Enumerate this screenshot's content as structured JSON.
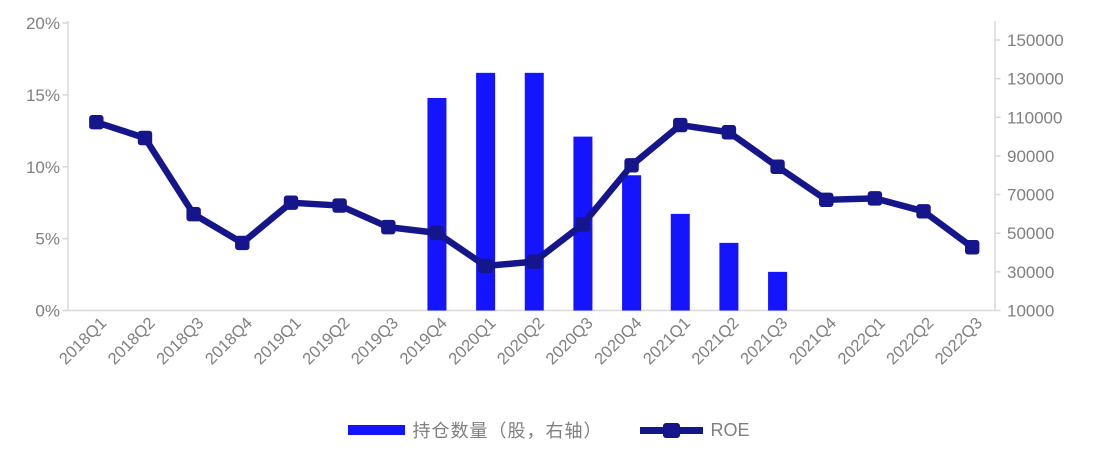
{
  "colors": {
    "bar": "#1414ff",
    "line": "#15158c",
    "axis": "#d9d9d9",
    "axis_label": "#808080",
    "legend_text": "#7f7f7f",
    "background": "#ffffff"
  },
  "legend": {
    "position": "bottom",
    "items": [
      {
        "label": "持仓数量（股，右轴）",
        "swatch": "bar"
      },
      {
        "label": "ROE",
        "swatch": "line-with-square-marker"
      }
    ]
  },
  "chart_data": {
    "type": "combo",
    "title": "",
    "xlabel": "",
    "ylabel": "",
    "grid": false,
    "legend_position": "bottom",
    "categories": [
      "2018Q1",
      "2018Q2",
      "2018Q3",
      "2018Q4",
      "2019Q1",
      "2019Q2",
      "2019Q3",
      "2019Q4",
      "2020Q1",
      "2020Q2",
      "2020Q3",
      "2020Q4",
      "2021Q1",
      "2021Q2",
      "2021Q3",
      "2021Q4",
      "2022Q1",
      "2022Q2",
      "2022Q3"
    ],
    "series": [
      {
        "name": "持仓数量（股，右轴）",
        "type": "bar",
        "axis": "right",
        "values": [
          null,
          null,
          null,
          null,
          null,
          null,
          null,
          120000,
          133000,
          133000,
          100000,
          80000,
          60000,
          45000,
          30000,
          null,
          null,
          null,
          null
        ]
      },
      {
        "name": "ROE",
        "type": "line",
        "axis": "left",
        "marker": "square",
        "values": [
          13.1,
          12.0,
          6.7,
          4.7,
          7.5,
          7.3,
          5.8,
          5.4,
          3.1,
          3.4,
          6.0,
          10.1,
          12.9,
          12.4,
          10.0,
          7.7,
          7.8,
          6.9,
          4.4
        ]
      }
    ],
    "left_axis": {
      "unit": "%",
      "min": 0,
      "max": 20,
      "tick_values": [
        0,
        5,
        10,
        15,
        20
      ],
      "tick_labels": [
        "0%",
        "5%",
        "10%",
        "15%",
        "20%"
      ]
    },
    "right_axis": {
      "min": 10000,
      "max": 150000,
      "tick_values": [
        10000,
        30000,
        50000,
        70000,
        90000,
        110000,
        130000,
        150000
      ],
      "tick_labels": [
        "10000",
        "30000",
        "50000",
        "70000",
        "90000",
        "110000",
        "130000",
        "150000"
      ]
    }
  }
}
